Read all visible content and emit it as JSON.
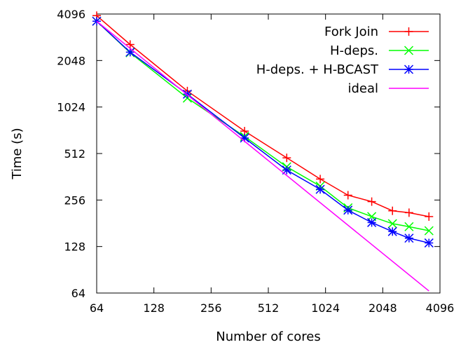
{
  "chart_data": {
    "type": "line",
    "title": "",
    "xlabel": "Number of cores",
    "ylabel": "Time (s)",
    "x_scale": "log2",
    "y_scale": "log2",
    "xlim": [
      64,
      4096
    ],
    "ylim": [
      64,
      4096
    ],
    "x_ticks": [
      "64",
      "128",
      "256",
      "512",
      "1024",
      "2048",
      "4096"
    ],
    "y_ticks": [
      "64",
      "128",
      "256",
      "512",
      "1024",
      "2048",
      "4096"
    ],
    "grid": false,
    "legend_position": "top-right",
    "series": [
      {
        "name": "Fork Join",
        "color": "#ff0000",
        "marker": "plus",
        "x": [
          64,
          96,
          192,
          384,
          640,
          960,
          1344,
          1792,
          2304,
          2816,
          3584
        ],
        "y": [
          4000,
          2600,
          1300,
          715,
          480,
          350,
          275,
          250,
          218,
          212,
          200
        ]
      },
      {
        "name": "H-deps.",
        "color": "#00ff00",
        "marker": "cross",
        "x": [
          64,
          96,
          192,
          384,
          640,
          960,
          1344,
          1792,
          2304,
          2816,
          3584
        ],
        "y": [
          3680,
          2300,
          1170,
          660,
          420,
          315,
          228,
          200,
          180,
          172,
          162
        ]
      },
      {
        "name": "H-deps. + H-BCAST",
        "color": "#0000ff",
        "marker": "star",
        "x": [
          64,
          96,
          192,
          384,
          640,
          960,
          1344,
          1792,
          2304,
          2816,
          3584
        ],
        "y": [
          3680,
          2320,
          1240,
          645,
          400,
          300,
          220,
          183,
          160,
          145,
          135
        ]
      },
      {
        "name": "ideal",
        "color": "#ff00ff",
        "marker": "none",
        "x": [
          64,
          3584
        ],
        "y": [
          3680,
          66
        ]
      }
    ]
  }
}
